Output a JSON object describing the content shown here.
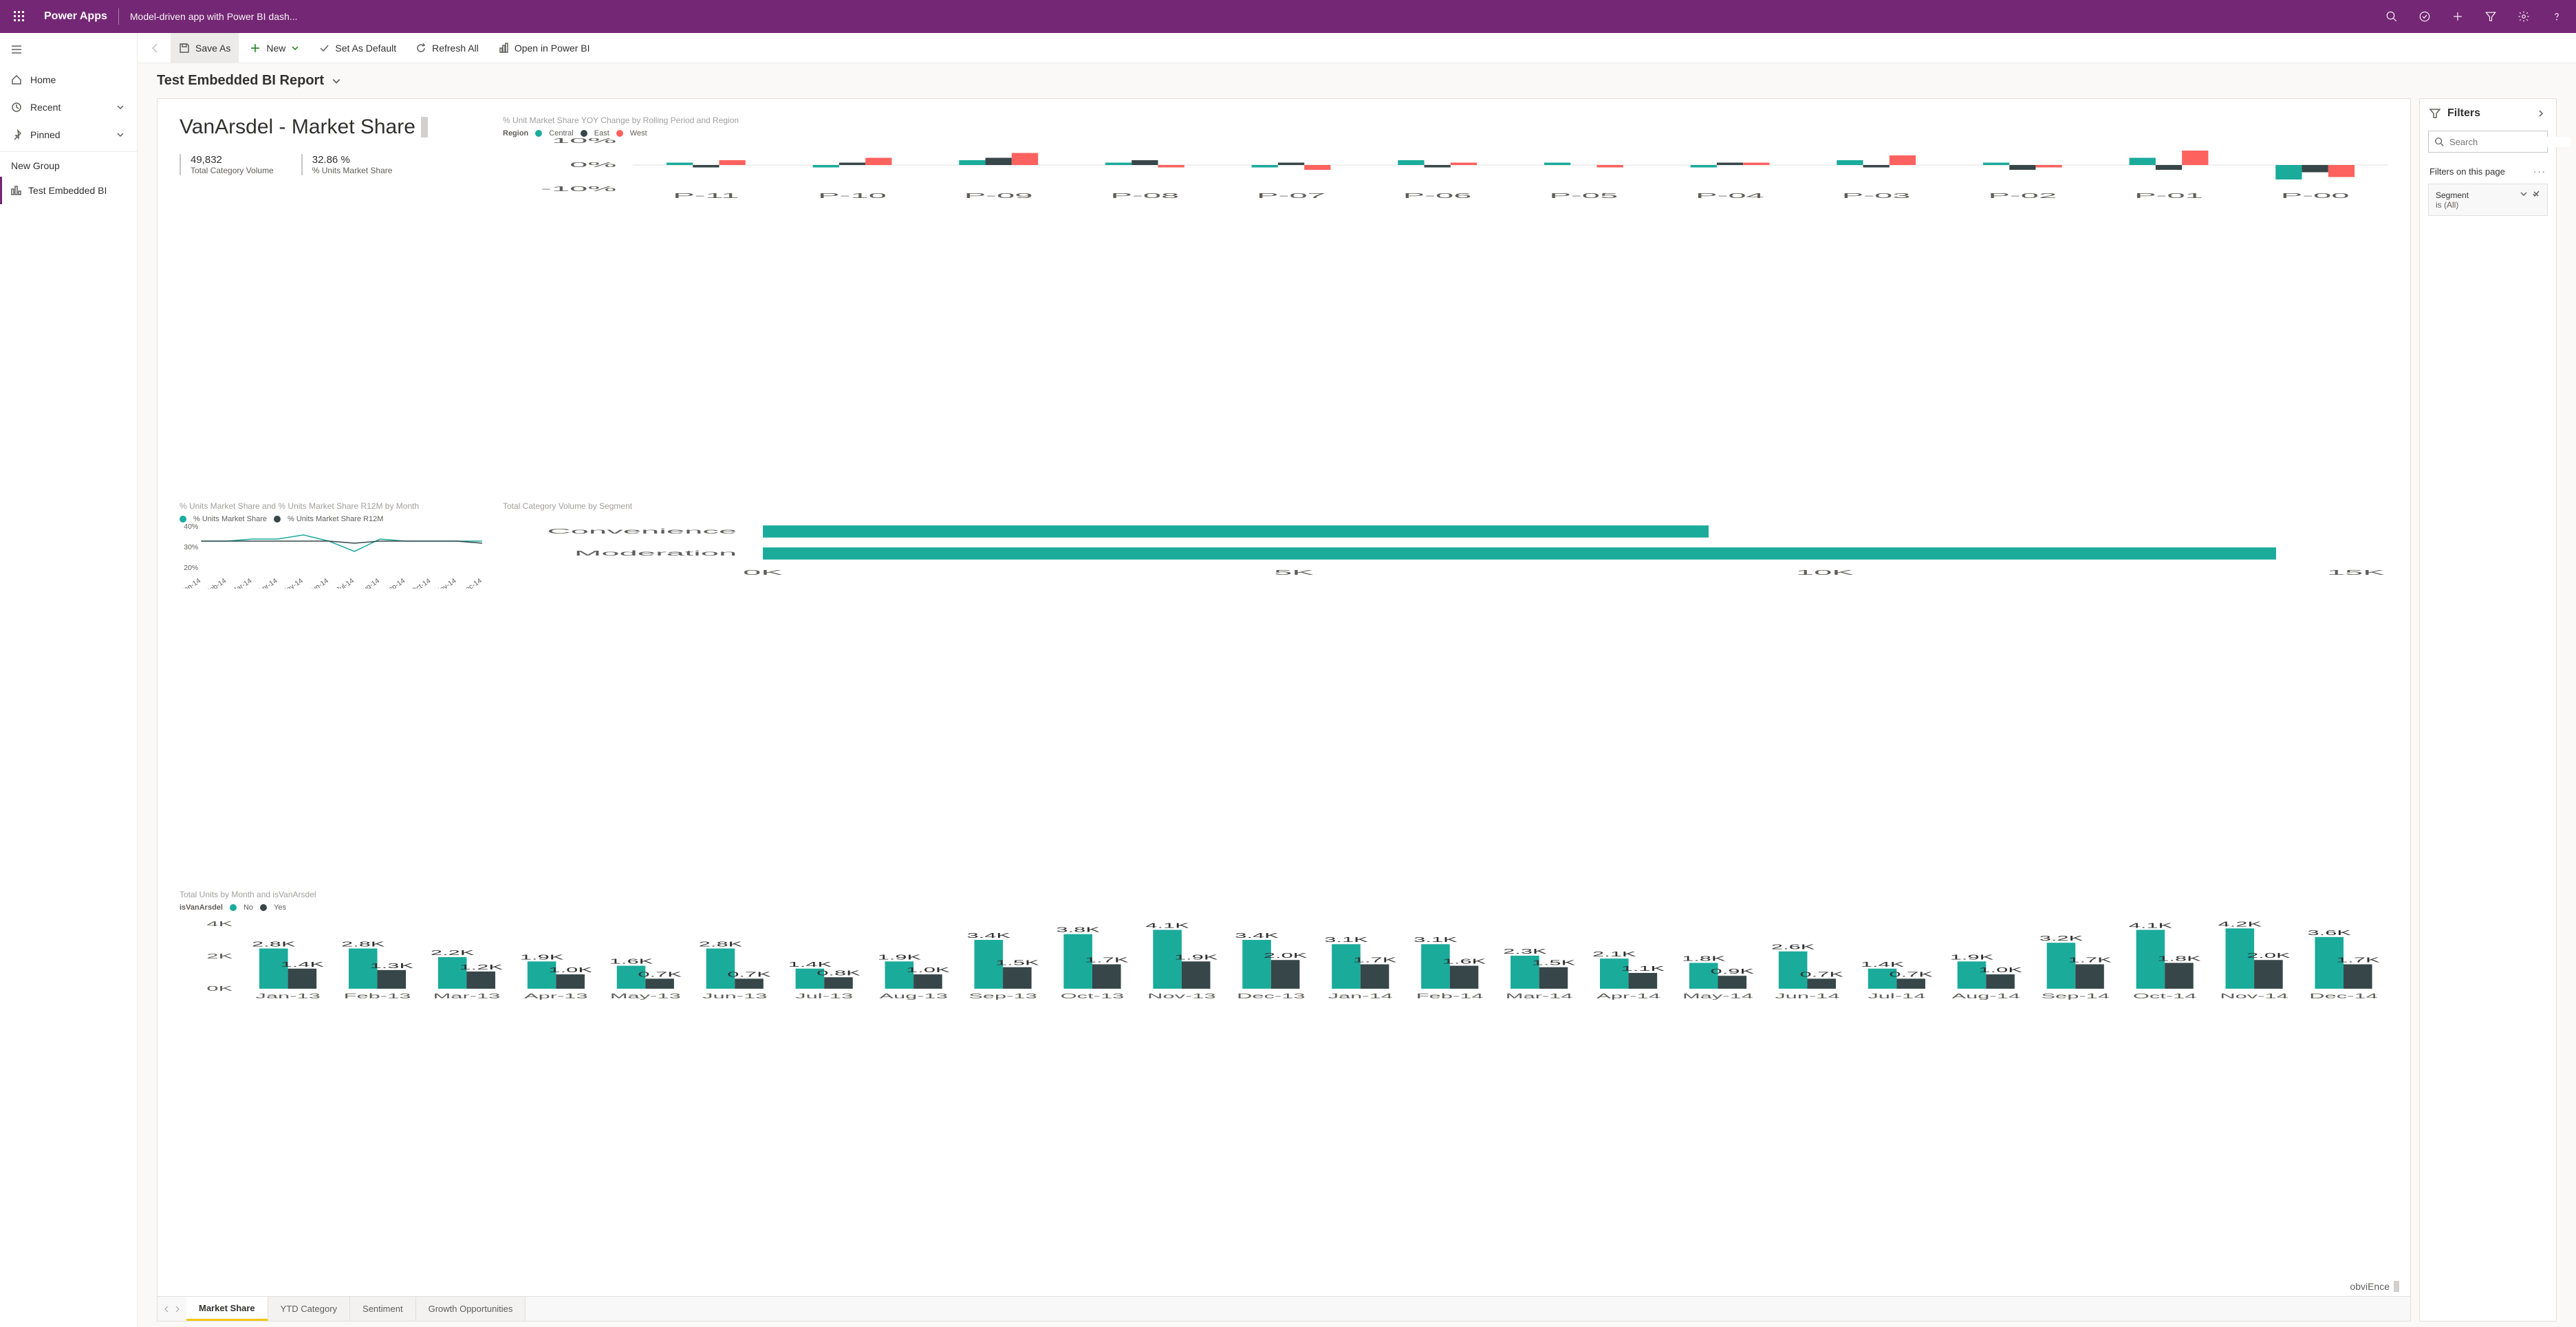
{
  "topbar": {
    "app": "Power Apps",
    "subtitle": "Model-driven app with Power BI dash..."
  },
  "leftnav": {
    "home": "Home",
    "recent": "Recent",
    "pinned": "Pinned",
    "group": "New Group",
    "active": "Test Embedded BI"
  },
  "cmdbar": {
    "save_as": "Save As",
    "new": "New",
    "set_default": "Set As Default",
    "refresh": "Refresh All",
    "open_pbi": "Open in Power BI"
  },
  "page_title": "Test Embedded BI Report",
  "report": {
    "title": "VanArsdel - Market Share",
    "kpi1_val": "49,832",
    "kpi1_lbl": "Total Category Volume",
    "kpi2_val": "32.86 %",
    "kpi2_lbl": "% Units Market Share",
    "brand": "obviEnce"
  },
  "yoy": {
    "title": "% Unit Market Share YOY Change by Rolling Period and Region",
    "legend_label": "Region",
    "legend": [
      {
        "name": "Central",
        "color": "#1aab9b"
      },
      {
        "name": "East",
        "color": "#374649"
      },
      {
        "name": "West",
        "color": "#fd625e"
      }
    ],
    "y_ticks": [
      "10%",
      "0%",
      "-10%"
    ],
    "categories": [
      "P-11",
      "P-10",
      "P-09",
      "P-08",
      "P-07",
      "P-06",
      "P-05",
      "P-04",
      "P-03",
      "P-02",
      "P-01",
      "P-00"
    ],
    "series": {
      "Central": [
        1,
        -1,
        2,
        1,
        -1,
        2,
        1,
        -1,
        2,
        1,
        3,
        -6
      ],
      "East": [
        -1,
        1,
        3,
        2,
        1,
        -1,
        0,
        1,
        -1,
        -2,
        -2,
        -3
      ],
      "West": [
        2,
        3,
        5,
        -1,
        -2,
        1,
        -1,
        1,
        4,
        -1,
        6,
        -5
      ]
    },
    "ylim": [
      -10,
      10
    ]
  },
  "line": {
    "title": "% Units Market Share and % Units Market Share R12M by Month",
    "legend": [
      {
        "name": "% Units Market Share",
        "color": "#1aab9b"
      },
      {
        "name": "% Units Market Share R12M",
        "color": "#374649"
      }
    ],
    "y_ticks": [
      "40%",
      "30%",
      "20%"
    ],
    "categories": [
      "Jan-14",
      "Feb-14",
      "Mar-14",
      "Apr-14",
      "May-14",
      "Jun-14",
      "Jul-14",
      "Aug-14",
      "Sep-14",
      "Oct-14",
      "Nov-14",
      "Dec-14"
    ],
    "series1": [
      33,
      33,
      34,
      34,
      36,
      33,
      28,
      34,
      33,
      33,
      33,
      33
    ],
    "series2": [
      33,
      33,
      33,
      33,
      33,
      33,
      32,
      33,
      33,
      33,
      33,
      32
    ],
    "ylim": [
      20,
      40
    ]
  },
  "hbar": {
    "title": "Total Category Volume by Segment",
    "categories": [
      "Convenience",
      "Moderation"
    ],
    "values": [
      9500,
      15200
    ],
    "x_ticks": [
      "0K",
      "5K",
      "10K",
      "15K"
    ],
    "xmax": 16000,
    "color": "#1aab9b"
  },
  "cols": {
    "title": "Total Units by Month and isVanArsdel",
    "legend_label": "isVanArsdel",
    "legend": [
      {
        "name": "No",
        "color": "#1aab9b"
      },
      {
        "name": "Yes",
        "color": "#374649"
      }
    ],
    "categories": [
      "Jan-13",
      "Feb-13",
      "Mar-13",
      "Apr-13",
      "May-13",
      "Jun-13",
      "Jul-13",
      "Aug-13",
      "Sep-13",
      "Oct-13",
      "Nov-13",
      "Dec-13",
      "Jan-14",
      "Feb-14",
      "Mar-14",
      "Apr-14",
      "May-14",
      "Jun-14",
      "Jul-14",
      "Aug-14",
      "Sep-14",
      "Oct-14",
      "Nov-14",
      "Dec-14"
    ],
    "no_vals": [
      2.8,
      2.8,
      2.2,
      1.9,
      1.6,
      2.8,
      1.4,
      1.9,
      3.4,
      3.8,
      4.1,
      3.4,
      3.1,
      3.1,
      2.3,
      2.1,
      1.8,
      2.6,
      1.4,
      1.9,
      3.2,
      4.1,
      4.2,
      3.6
    ],
    "yes_vals": [
      1.4,
      1.3,
      1.2,
      1.0,
      0.7,
      0.7,
      0.8,
      1.0,
      1.5,
      1.7,
      1.9,
      2.0,
      1.7,
      1.6,
      1.5,
      1.1,
      0.9,
      0.7,
      0.7,
      1.0,
      1.7,
      1.8,
      2.0,
      1.7
    ],
    "y_ticks": [
      "4K",
      "2K",
      "0K"
    ],
    "ymax": 4.5
  },
  "tabs": [
    "Market Share",
    "YTD Category",
    "Sentiment",
    "Growth Opportunities"
  ],
  "active_tab": 0,
  "filters": {
    "title": "Filters",
    "search_ph": "Search",
    "section": "Filters on this page",
    "card_name": "Segment",
    "card_val": "is (All)"
  }
}
